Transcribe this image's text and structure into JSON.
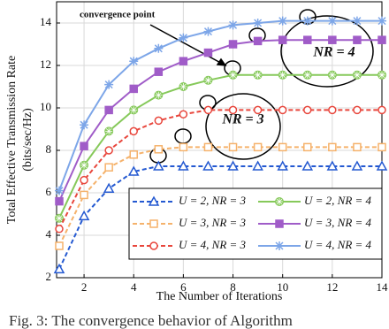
{
  "chart_data": {
    "type": "line",
    "y_label_lines": [
      "Total Effective Transmission Rate",
      "(bits/sec/Hz)"
    ],
    "x_label": "The Number of Iterations",
    "caption": "Fig. 3: The convergence behavior of Algorithm",
    "annotations": {
      "convergence": "convergence point",
      "nr4": "NR = 4",
      "nr3": "NR = 3"
    },
    "x": [
      1,
      2,
      3,
      4,
      5,
      6,
      7,
      8,
      9,
      10,
      11,
      12,
      13,
      14
    ],
    "xlim": [
      1,
      14
    ],
    "xticks": [
      2,
      4,
      6,
      8,
      10,
      12,
      14
    ],
    "ylim": [
      2,
      15
    ],
    "yticks": [
      2,
      4,
      6,
      8,
      10,
      12,
      14
    ],
    "grid": true,
    "series": [
      {
        "name": "U = 2, NR = 3",
        "color": "#2459d1",
        "marker": "triangle",
        "dashed": true,
        "values": [
          2.4,
          4.9,
          6.2,
          7.0,
          7.25,
          7.25,
          7.25,
          7.25,
          7.25,
          7.25,
          7.25,
          7.25,
          7.25,
          7.25
        ]
      },
      {
        "name": "U = 2, NR = 4",
        "color": "#86c95a",
        "marker": "circle-plus",
        "dashed": false,
        "values": [
          4.8,
          7.3,
          8.9,
          9.9,
          10.6,
          11.0,
          11.3,
          11.55,
          11.55,
          11.55,
          11.55,
          11.55,
          11.55,
          11.55
        ]
      },
      {
        "name": "U = 3, NR = 3",
        "color": "#f5b26b",
        "marker": "square",
        "dashed": true,
        "values": [
          3.5,
          5.9,
          7.2,
          7.8,
          8.05,
          8.15,
          8.15,
          8.15,
          8.15,
          8.15,
          8.15,
          8.15,
          8.15,
          8.15
        ]
      },
      {
        "name": "U = 3, NR = 4",
        "color": "#a05cc8",
        "marker": "square-filled",
        "dashed": false,
        "values": [
          5.6,
          8.2,
          9.9,
          10.9,
          11.7,
          12.2,
          12.6,
          13.0,
          13.15,
          13.2,
          13.2,
          13.2,
          13.2,
          13.2
        ]
      },
      {
        "name": "U = 4, NR = 3",
        "color": "#e8463c",
        "marker": "circle",
        "dashed": true,
        "values": [
          4.3,
          6.6,
          8.0,
          8.9,
          9.4,
          9.7,
          9.9,
          9.9,
          9.9,
          9.9,
          9.9,
          9.9,
          9.9,
          9.9
        ]
      },
      {
        "name": "U = 4, NR = 4",
        "color": "#7da6e8",
        "marker": "star",
        "dashed": false,
        "values": [
          6.1,
          9.2,
          11.1,
          12.2,
          12.8,
          13.3,
          13.6,
          13.9,
          14.0,
          14.1,
          14.1,
          14.1,
          14.1,
          14.1
        ]
      }
    ]
  }
}
